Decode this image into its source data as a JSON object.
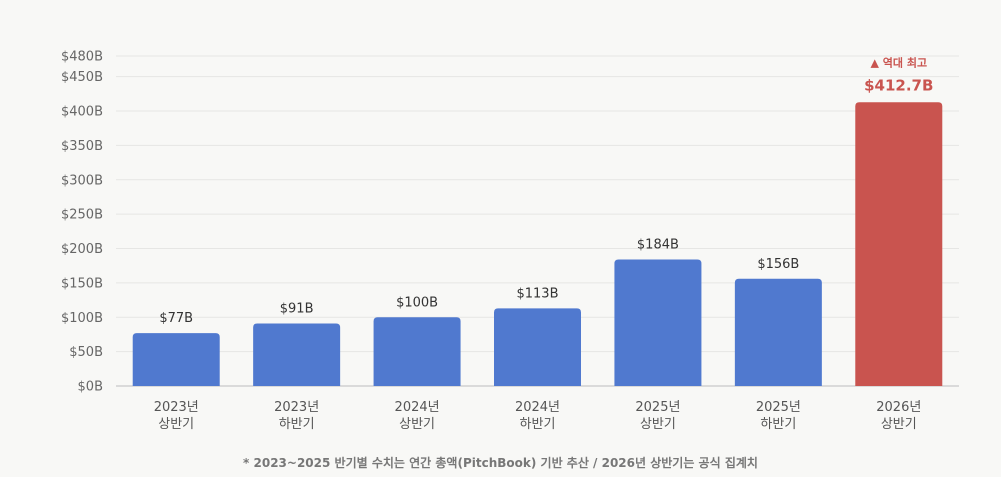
{
  "chart_data": {
    "type": "bar",
    "categories": [
      [
        "2023년",
        "상반기"
      ],
      [
        "2023년",
        "하반기"
      ],
      [
        "2024년",
        "상반기"
      ],
      [
        "2024년",
        "하반기"
      ],
      [
        "2025년",
        "상반기"
      ],
      [
        "2025년",
        "하반기"
      ],
      [
        "2026년",
        "상반기"
      ]
    ],
    "values": [
      77,
      91,
      100,
      113,
      184,
      156,
      412.7
    ],
    "value_labels": [
      "$77B",
      "$91B",
      "$100B",
      "$113B",
      "$184B",
      "$156B",
      "$412.7B"
    ],
    "yticks": [
      0,
      50,
      100,
      150,
      200,
      250,
      300,
      350,
      400,
      450,
      480
    ],
    "ytick_labels": [
      "$0B",
      "$50B",
      "$100B",
      "$150B",
      "$200B",
      "$250B",
      "$300B",
      "$350B",
      "$400B",
      "$450B",
      "$480B"
    ],
    "ylim": [
      0,
      480
    ],
    "grid": true,
    "bar_color": "#5079cf",
    "highlight_index": 6,
    "highlight_color": "#c9544f",
    "annotation": "▲ 역대 최고"
  },
  "footnote": "* 2023~2025 반기별 수치는 연간 총액(PitchBook) 기반 추산 / 2026년 상반기는 공식 집계치"
}
